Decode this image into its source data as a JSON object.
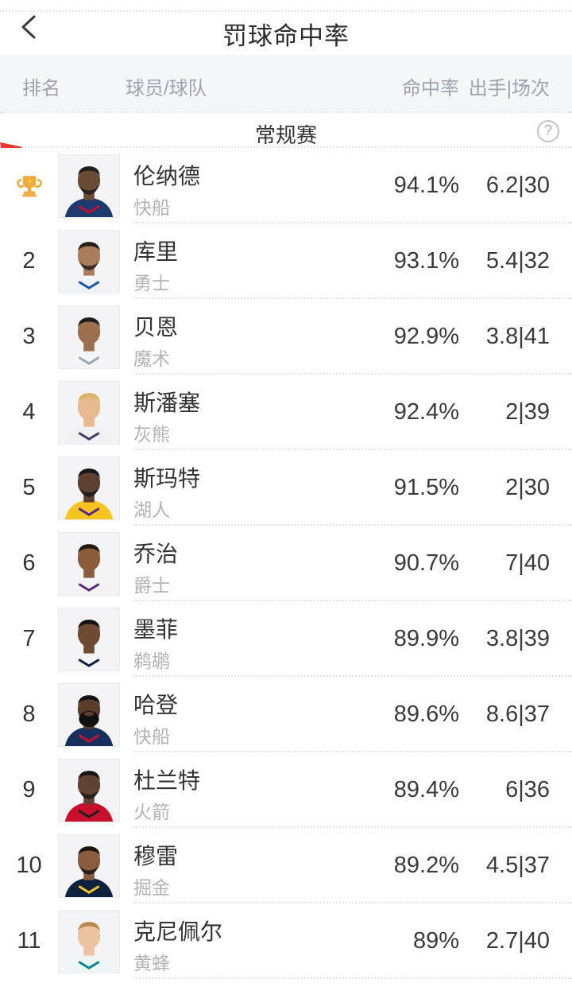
{
  "header": {
    "title": "罚球命中率",
    "back_icon": "chevron-left-icon"
  },
  "table_header": {
    "rank": "排名",
    "player": "球员/球队",
    "pct": "命中率",
    "attempts": "出手|场次"
  },
  "section": {
    "title": "常规赛",
    "help_text": "?",
    "help_icon": "help-icon"
  },
  "colors": {
    "accent_red": "#e8352e",
    "trophy_gold": "#f2a93b",
    "trophy_gold_light": "#fdd35c",
    "text_dark": "#333333",
    "header_text_gray": "#9ba3b0",
    "team_gray": "#b3b3b3",
    "table_header_bg": "#f5f6f8"
  },
  "rows": [
    {
      "rank": "1",
      "trophy": true,
      "name": "伦纳德",
      "team": "快船",
      "pct": "94.1%",
      "attempts": "6.2|30",
      "avatar": {
        "skin": "#6b4a35",
        "hair": "#1d1d1d",
        "jersey": "#1d3a6e",
        "trim": "#c8102e",
        "beard": "small"
      }
    },
    {
      "rank": "2",
      "trophy": false,
      "name": "库里",
      "team": "勇士",
      "pct": "93.1%",
      "attempts": "5.4|32",
      "avatar": {
        "skin": "#a97c5a",
        "hair": "#2a2018",
        "jersey": "#f2f3f5",
        "trim": "#1d51a8",
        "beard": "small"
      }
    },
    {
      "rank": "3",
      "trophy": false,
      "name": "贝恩",
      "team": "魔术",
      "pct": "92.9%",
      "attempts": "3.8|41",
      "avatar": {
        "skin": "#9c6f4e",
        "hair": "#1d1d1d",
        "jersey": "#f5f5f7",
        "trim": "#9aa7b5",
        "beard": "none"
      }
    },
    {
      "rank": "4",
      "trophy": false,
      "name": "斯潘塞",
      "team": "灰熊",
      "pct": "92.4%",
      "attempts": "2|39",
      "avatar": {
        "skin": "#e8b88f",
        "hair": "#d9b36a",
        "jersey": "#f1f1f3",
        "trim": "#3b3f6b",
        "beard": "none"
      }
    },
    {
      "rank": "5",
      "trophy": false,
      "name": "斯玛特",
      "team": "湖人",
      "pct": "91.5%",
      "attempts": "2|30",
      "avatar": {
        "skin": "#5d4030",
        "hair": "#171717",
        "jersey": "#f7c320",
        "trim": "#552583",
        "beard": "small"
      }
    },
    {
      "rank": "6",
      "trophy": false,
      "name": "乔治",
      "team": "爵士",
      "pct": "90.7%",
      "attempts": "7|40",
      "avatar": {
        "skin": "#8a5c3b",
        "hair": "#241a12",
        "jersey": "#f3f3f5",
        "trim": "#5b2b82",
        "beard": "none"
      }
    },
    {
      "rank": "7",
      "trophy": false,
      "name": "墨菲",
      "team": "鹈鹕",
      "pct": "89.9%",
      "attempts": "3.8|39",
      "avatar": {
        "skin": "#6e4a32",
        "hair": "#151515",
        "jersey": "#f5f5f7",
        "trim": "#0a2240",
        "beard": "none"
      }
    },
    {
      "rank": "8",
      "trophy": false,
      "name": "哈登",
      "team": "快船",
      "pct": "89.6%",
      "attempts": "8.6|37",
      "avatar": {
        "skin": "#5c3d2a",
        "hair": "#121212",
        "jersey": "#16305e",
        "trim": "#c8102e",
        "beard": "big"
      }
    },
    {
      "rank": "9",
      "trophy": false,
      "name": "杜兰特",
      "team": "火箭",
      "pct": "89.4%",
      "attempts": "6|36",
      "avatar": {
        "skin": "#5f4231",
        "hair": "#171717",
        "jersey": "#c8102e",
        "trim": "#1d1d1d",
        "beard": "small"
      }
    },
    {
      "rank": "10",
      "trophy": false,
      "name": "穆雷",
      "team": "掘金",
      "pct": "89.2%",
      "attempts": "4.5|37",
      "avatar": {
        "skin": "#8a5c3f",
        "hair": "#1c140e",
        "jersey": "#0e2240",
        "trim": "#fec524",
        "beard": "small"
      }
    },
    {
      "rank": "11",
      "trophy": false,
      "name": "克尼佩尔",
      "team": "黄蜂",
      "pct": "89%",
      "attempts": "2.7|40",
      "avatar": {
        "skin": "#ecc3a0",
        "hair": "#b98a4e",
        "jersey": "#eef6f5",
        "trim": "#00848e",
        "beard": "none"
      }
    }
  ]
}
